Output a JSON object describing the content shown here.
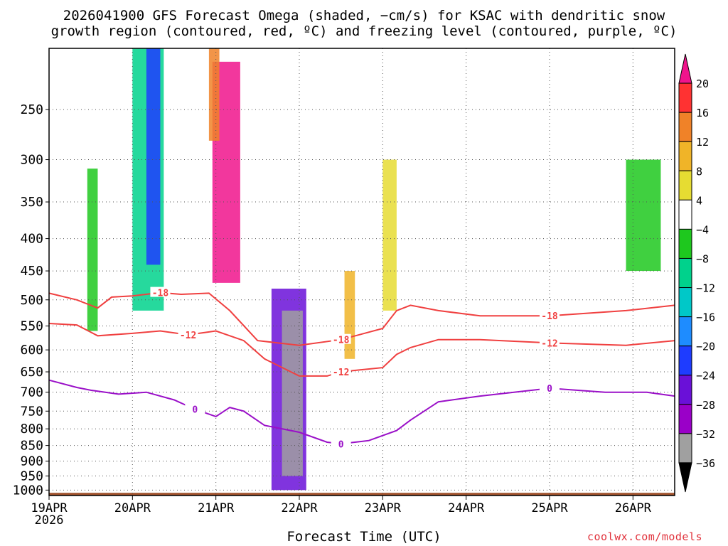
{
  "title_line1": "2026041900 GFS Forecast Omega (shaded, −cm/s) for KSAC with dendritic snow",
  "title_line2": "growth region (contoured, red, ºC) and freezing level (contoured, purple, ºC)",
  "credit": "coolwx.com/models",
  "chart_data": {
    "type": "heatmap",
    "title": "2026041900 GFS Forecast Omega (shaded, −cm/s) for KSAC with dendritic snow growth region (contoured, red, ºC) and freezing level (contoured, purple, ºC)",
    "xlabel": "Forecast Time (UTC)",
    "ylabel": "",
    "x_range_hours": [
      0,
      180
    ],
    "y_range_hpa": [
      200,
      1020
    ],
    "y_scale": "log-pressure",
    "x_ticks": [
      {
        "hour": 0,
        "label": "19APR",
        "sublabel": "2026"
      },
      {
        "hour": 24,
        "label": "20APR"
      },
      {
        "hour": 48,
        "label": "21APR"
      },
      {
        "hour": 72,
        "label": "22APR"
      },
      {
        "hour": 96,
        "label": "23APR"
      },
      {
        "hour": 120,
        "label": "24APR"
      },
      {
        "hour": 144,
        "label": "25APR"
      },
      {
        "hour": 168,
        "label": "26APR"
      }
    ],
    "y_ticks": [
      250,
      300,
      350,
      400,
      450,
      500,
      550,
      600,
      650,
      700,
      750,
      800,
      850,
      900,
      950,
      1000
    ],
    "grid": true,
    "colorbar": {
      "levels": [
        -36,
        -32,
        -28,
        -24,
        -20,
        -16,
        -12,
        -8,
        -4,
        4,
        8,
        12,
        16,
        20
      ],
      "labels": [
        "20",
        "16",
        "12",
        "8",
        "4",
        "−4",
        "−8",
        "−12",
        "−16",
        "−20",
        "−24",
        "−28",
        "−32",
        "−36"
      ],
      "colors": [
        "#000000",
        "#a0a0a0",
        "#9a00c8",
        "#6a10d8",
        "#1e3cff",
        "#1e8cff",
        "#00c8c8",
        "#00d28c",
        "#1ec81e",
        "#ffffff",
        "#e6dc32",
        "#f0b428",
        "#f08228",
        "#ff3232",
        "#f0148c"
      ]
    },
    "omega_features": [
      {
        "hour_start": 11,
        "hour_end": 14,
        "p_top": 310,
        "p_bot": 560,
        "value": -8
      },
      {
        "hour_start": 24,
        "hour_end": 33,
        "p_top": 200,
        "p_bot": 520,
        "value": -12
      },
      {
        "hour_start": 28,
        "hour_end": 32,
        "p_top": 200,
        "p_bot": 440,
        "value": -24
      },
      {
        "hour_start": 47,
        "hour_end": 55,
        "p_top": 210,
        "p_bot": 470,
        "value": 20
      },
      {
        "hour_start": 46,
        "hour_end": 49,
        "p_top": 200,
        "p_bot": 280,
        "value": 12
      },
      {
        "hour_start": 64,
        "hour_end": 74,
        "p_top": 480,
        "p_bot": 1000,
        "value": -28
      },
      {
        "hour_start": 67,
        "hour_end": 73,
        "p_top": 520,
        "p_bot": 950,
        "value": -36
      },
      {
        "hour_start": 85,
        "hour_end": 88,
        "p_top": 450,
        "p_bot": 620,
        "value": 8
      },
      {
        "hour_start": 96,
        "hour_end": 100,
        "p_top": 300,
        "p_bot": 520,
        "value": 4
      },
      {
        "hour_start": 166,
        "hour_end": 176,
        "p_top": 300,
        "p_bot": 450,
        "value": -8
      }
    ],
    "dgz_contours": [
      {
        "label": "-18",
        "hours": [
          0,
          8,
          14,
          18,
          24,
          32,
          38,
          46,
          52,
          60,
          72,
          84,
          96,
          100,
          104,
          112,
          124,
          144,
          166,
          180
        ],
        "pressure_hpa": [
          488,
          500,
          515,
          495,
          493,
          487,
          490,
          488,
          520,
          580,
          590,
          578,
          555,
          520,
          510,
          520,
          530,
          530,
          520,
          510
        ]
      },
      {
        "label": "-12",
        "hours": [
          0,
          8,
          14,
          24,
          32,
          40,
          48,
          56,
          62,
          72,
          80,
          84,
          96,
          100,
          104,
          112,
          124,
          144,
          166,
          180
        ],
        "pressure_hpa": [
          545,
          548,
          570,
          565,
          560,
          568,
          560,
          580,
          620,
          660,
          660,
          650,
          640,
          610,
          595,
          578,
          578,
          585,
          590,
          580
        ]
      }
    ],
    "freezing_level_contour": {
      "label": "0",
      "hours": [
        0,
        8,
        12,
        20,
        28,
        36,
        42,
        48,
        52,
        56,
        62,
        72,
        80,
        84,
        92,
        100,
        104,
        112,
        124,
        144,
        160,
        172,
        180
      ],
      "pressure_hpa": [
        670,
        688,
        695,
        705,
        700,
        720,
        745,
        765,
        740,
        750,
        790,
        810,
        840,
        845,
        835,
        805,
        775,
        725,
        710,
        690,
        700,
        700,
        710
      ]
    },
    "ground_band_hpa": [
      1010,
      1030
    ]
  }
}
